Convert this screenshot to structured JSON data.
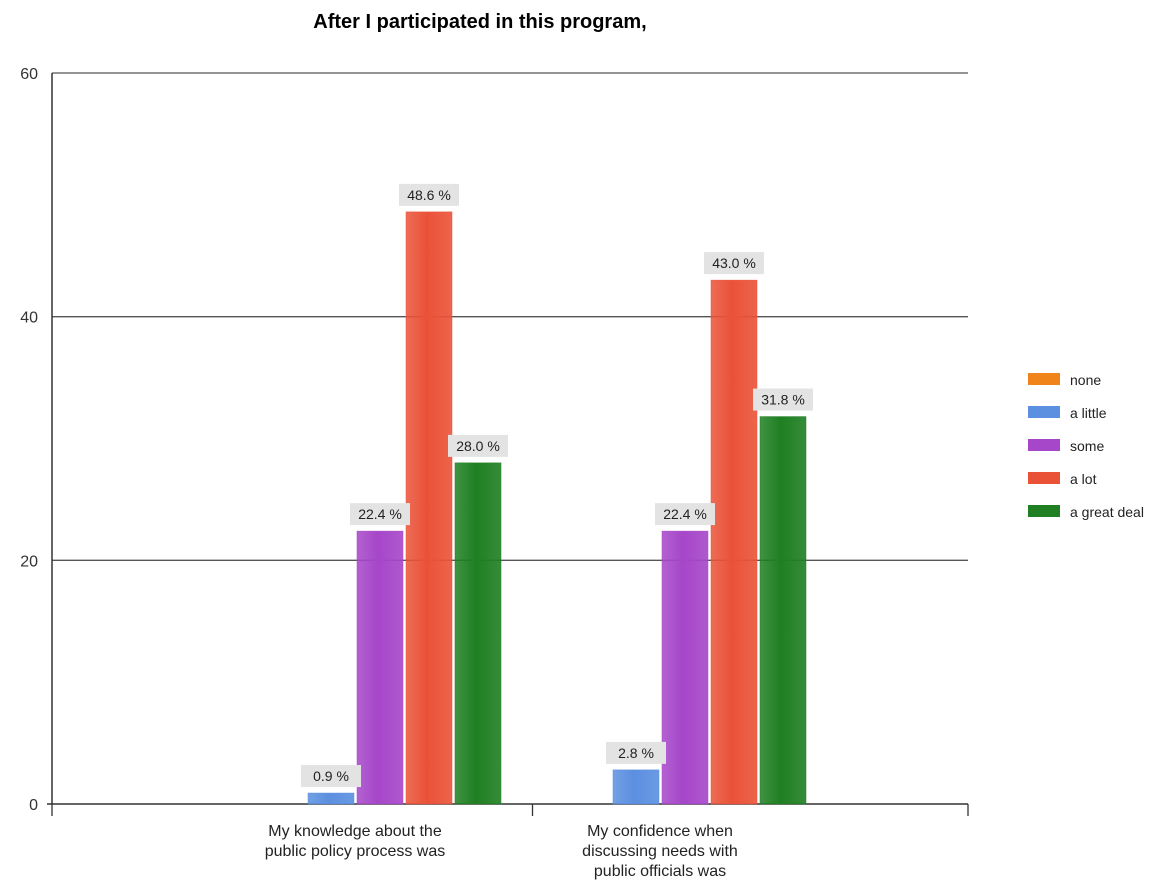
{
  "chart_data": {
    "type": "bar",
    "title": "After I participated in this program,",
    "categories": [
      [
        "My knowledge about the",
        "public policy process was"
      ],
      [
        "My confidence when",
        "discussing needs with",
        "public officials was"
      ]
    ],
    "ylim": [
      0,
      60
    ],
    "yticks": [
      0,
      20,
      40,
      60
    ],
    "grid": true,
    "legend_position": "right",
    "series": [
      {
        "name": "none",
        "color": "#f0841a",
        "values": [
          0,
          0
        ],
        "labels": [
          null,
          null
        ]
      },
      {
        "name": "a little",
        "color": "#5b8fe0",
        "values": [
          0.9,
          2.8
        ],
        "labels": [
          "0.9 %",
          "2.8 %"
        ]
      },
      {
        "name": "some",
        "color": "#a646c9",
        "values": [
          22.4,
          22.4
        ],
        "labels": [
          "22.4 %",
          "22.4 %"
        ]
      },
      {
        "name": "a lot",
        "color": "#ea5238",
        "values": [
          48.6,
          43.0
        ],
        "labels": [
          "48.6 %",
          "43.0 %"
        ]
      },
      {
        "name": "a great deal",
        "color": "#1f7f22",
        "values": [
          28.0,
          31.8
        ],
        "labels": [
          "28.0 %",
          "31.8 %"
        ]
      }
    ]
  }
}
